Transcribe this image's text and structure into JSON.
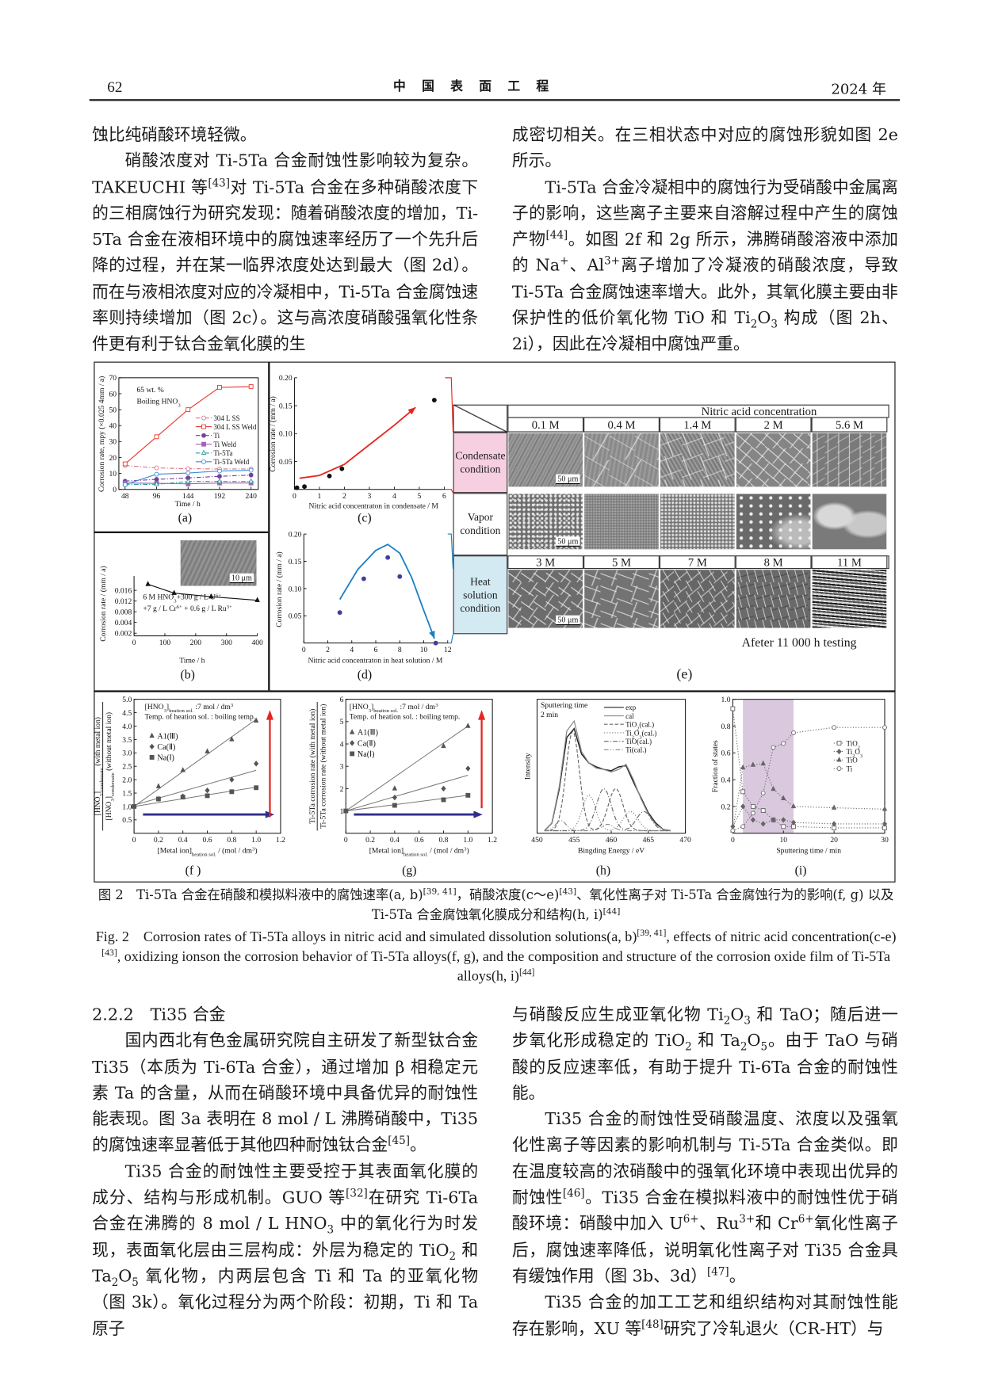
{
  "header": {
    "page_number": "62",
    "journal": "中　国　表　面　工　程",
    "year": "2024 年"
  },
  "left_top": [
    {
      "text": "蚀比纯硝酸环境轻微。",
      "indent": false
    },
    {
      "text": "硝酸浓度对 Ti-5Ta 合金耐蚀性影响较为复杂。TAKEUCHI 等^{[43]}对 Ti-5Ta 合金在多种硝酸浓度下的三相腐蚀行为研究发现：随着硝酸浓度的增加，Ti-5Ta 合金在液相环境中的腐蚀速率经历了一个先升后降的过程，并在某一临界浓度处达到最大（图 2d）。而在与液相浓度对应的冷凝相中，Ti-5Ta 合金腐蚀速率则持续增加（图 2c）。这与高浓度硝酸强氧化性条件更有利于钛合金氧化膜的生",
      "indent": true
    }
  ],
  "right_top": [
    {
      "text": "成密切相关。在三相状态中对应的腐蚀形貌如图 2e 所示。",
      "indent": false
    },
    {
      "text": "Ti-5Ta 合金冷凝相中的腐蚀行为受硝酸中金属离子的影响，这些离子主要来自溶解过程中产生的腐蚀产物^{[44]}。如图 2f 和 2g 所示，沸腾硝酸溶液中添加的 Na^{+}、Al^{3+}离子增加了冷凝液的硝酸浓度，导致 Ti-5Ta 合金腐蚀速率增大。此外，其氧化膜主要由非保护性的低价氧化物 TiO 和 Ti_{2}O_{3} 构成（图 2h、2i），因此在冷凝相中腐蚀严重。",
      "indent": true
    }
  ],
  "caption": {
    "cn": "图 2　Ti-5Ta 合金在硝酸和模拟料液中的腐蚀速率(a, b)^{[39, 41]}，硝酸浓度(c～e)^{[43]}、氧化性离子对 Ti-5Ta 合金腐蚀行为的影响(f, g) 以及 Ti-5Ta 合金腐蚀氧化膜成分和结构(h, i)^{[44]}",
    "en": "Fig. 2　Corrosion rates of Ti-5Ta alloys in nitric acid and simulated dissolution solutions(a, b)^{[39, 41]}, effects of nitric acid concentration(c-e)^{[43]}, oxidizing ionson the corrosion behavior of Ti-5Ta alloys(f, g), and the composition and structure of the corrosion oxide film of Ti-5Ta alloys(h, i)^{[44]}"
  },
  "section": {
    "heading": "2.2.2　Ti35 合金"
  },
  "left_bottom": [
    {
      "text": "国内西北有色金属研究院自主研发了新型钛合金 Ti35（本质为 Ti-6Ta 合金），通过增加 β 相稳定元素 Ta 的含量，从而在硝酸环境中具备优异的耐蚀性能表现。图 3a 表明在 8 mol / L 沸腾硝酸中，Ti35 的腐蚀速率显著低于其他四种耐蚀钛合金^{[45]}。",
      "indent": true
    },
    {
      "text": "Ti35 合金的耐蚀性主要受控于其表面氧化膜的成分、结构与形成机制。GUO 等^{[32]}在研究 Ti-6Ta 合金在沸腾的 8 mol / L HNO_{3} 中的氧化行为时发现，表面氧化层由三层构成：外层为稳定的 TiO_{2} 和 Ta_{2}O_{5} 氧化物，内两层包含 Ti 和 Ta 的亚氧化物（图 3k）。氧化过程分为两个阶段：初期，Ti 和 Ta 原子",
      "indent": true
    }
  ],
  "right_bottom": [
    {
      "text": "与硝酸反应生成亚氧化物 Ti_{2}O_{3} 和 TaO；随后进一步氧化形成稳定的 TiO_{2} 和 Ta_{2}O_{5}。由于 TaO 与硝酸的反应速率低，有助于提升 Ti-6Ta 合金的耐蚀性能。",
      "indent": false
    },
    {
      "text": "Ti35 合金的耐蚀性受硝酸温度、浓度以及强氧化性离子等因素的影响机制与 Ti-5Ta 合金类似。即在温度较高的浓硝酸中的强氧化环境中表现出优异的耐蚀性^{[46]}。Ti35 合金在模拟料液中的耐蚀性优于硝酸环境：硝酸中加入 U^{6+}、Ru^{3+}和 Cr^{6+}氧化性离子后，腐蚀速率降低，说明氧化性离子对 Ti35 合金具有缓蚀作用（图 3b、3d）^{[47]}。",
      "indent": true
    },
    {
      "text": "Ti35 合金的加工工艺和组织结构对其耐蚀性能存在影响，XU 等^{[48]}研究了冷轧退火（CR-HT）与",
      "indent": true
    }
  ],
  "panel_e": {
    "header": "Nitric acid concentration",
    "columns_top": [
      "0.1 M",
      "0.4 M",
      "1.4 M",
      "2 M",
      "5.6 M"
    ],
    "columns_heat": [
      "3 M",
      "5 M",
      "7 M",
      "8 M",
      "11 M"
    ],
    "rows": [
      "Condensate condition",
      "Vapor condition",
      "Heat solution condition"
    ],
    "row_colors": [
      "#f6cfe1",
      "#ffffff",
      "#d4eaf3"
    ],
    "scale_bar": "50 μm",
    "note": "Afeter 11 000 h testing",
    "label": "(e)"
  },
  "chart_data": [
    {
      "id": "a",
      "type": "line",
      "label": "(a)",
      "xlabel": "Time / h",
      "ylabel": "Corrosion rate, mpy (×0.025 4mm / a)",
      "annotations": [
        "65 wt. %",
        "Boiling HNO_{3}"
      ],
      "xticks": [
        "48",
        "96",
        "144",
        "192",
        "240"
      ],
      "yticks": [
        "0",
        "10",
        "20",
        "30",
        "40",
        "50",
        "60",
        "70"
      ],
      "xlim": [
        38.5,
        251
      ],
      "ylim": [
        0,
        70
      ],
      "legend": "upper-right",
      "x": [
        48,
        96,
        144,
        192,
        240
      ],
      "series": [
        {
          "name": "304 L SS",
          "values": [
            15,
            13.5,
            13,
            12.8,
            12.8
          ],
          "color": "#d9758a",
          "dash": "dashdot",
          "marker": "circle-open"
        },
        {
          "name": "304 L SS Weld",
          "values": [
            16,
            33,
            50,
            64,
            64.5
          ],
          "color": "#e8392f",
          "dash": "solid",
          "marker": "square-open"
        },
        {
          "name": "Ti",
          "values": [
            5.2,
            6.3,
            7.2,
            8.2,
            9
          ],
          "color": "#7a3f9a",
          "dash": "dashdot",
          "marker": "circle"
        },
        {
          "name": "Ti Weld",
          "values": [
            4,
            3.8,
            3.5,
            4,
            4
          ],
          "color": "#a064b8",
          "dash": "solid",
          "marker": "square"
        },
        {
          "name": "Ti-5Ta",
          "values": [
            3,
            3.2,
            5,
            5,
            5
          ],
          "color": "#2aa0a0",
          "dash": "dashdot",
          "marker": "triangle-open"
        },
        {
          "name": "Ti-5Ta Weld",
          "values": [
            3,
            9.5,
            10.3,
            11.5,
            12
          ],
          "color": "#3a8fd6",
          "dash": "solid",
          "marker": "circle-open"
        }
      ]
    },
    {
      "id": "b",
      "type": "line",
      "label": "(b)",
      "xlabel": "Time / h",
      "ylabel": "Corrosion rate / (mm / a)",
      "annotations": [
        "6 M HNO_{3}+300 g / L U^{6+}",
        "+7 g / L Cr^{6+} + 0.6 g / L Ru^{3+}"
      ],
      "inset_scale": "10 μm",
      "xticks": [
        "0",
        "100",
        "200",
        "300",
        "400"
      ],
      "yticks": [
        "0.002",
        "0.004",
        "0.008",
        "0.012",
        "0.016"
      ],
      "xlim": [
        0,
        400
      ],
      "ylim": [
        0,
        0.0168
      ],
      "series": [
        {
          "points": [
            [
              45,
              0.0145
            ],
            [
              130,
              0.012
            ],
            [
              250,
              0.011
            ],
            [
              400,
              0.01
            ]
          ],
          "color": "#111111",
          "dash": "solid",
          "marker": "triangle"
        }
      ]
    },
    {
      "id": "c",
      "type": "scatter",
      "label": "(c)",
      "xlabel": "Nitric acid concentraton in condensate / M",
      "ylabel": "Corrosion rate / (mm / a)",
      "xticks": [
        "0",
        "1",
        "2",
        "3",
        "4",
        "5",
        "6"
      ],
      "yticks": [
        "0.05",
        "0.10",
        "0.15",
        "0.20"
      ],
      "xlim": [
        0,
        6.03
      ],
      "ylim": [
        0,
        0.2
      ],
      "series": [
        {
          "points": [
            [
              0.1,
              0.003
            ],
            [
              0.4,
              0.005
            ],
            [
              1.4,
              0.024
            ],
            [
              1.9,
              0.037
            ],
            [
              5.6,
              0.16
            ]
          ],
          "color": "#111111",
          "line": false,
          "marker": "circle"
        }
      ],
      "trend": {
        "points": [
          [
            0.2,
            0.02
          ],
          [
            1,
            0.025
          ],
          [
            2,
            0.045
          ],
          [
            3,
            0.08
          ],
          [
            4,
            0.115
          ],
          [
            4.85,
            0.147
          ]
        ],
        "color": "#e5251f",
        "arrow": true
      }
    },
    {
      "id": "d",
      "type": "scatter",
      "label": "(d)",
      "xlabel": "Nitric acid concentraton in heat solution / M",
      "ylabel": "Corrosion rate / (mm / a)",
      "xticks": [
        "0",
        "2",
        "4",
        "6",
        "8",
        "10",
        "12"
      ],
      "yticks": [
        "0.05",
        "0.10",
        "0.15",
        "0.20"
      ],
      "xlim": [
        0,
        12
      ],
      "ylim": [
        0,
        0.2
      ],
      "series": [
        {
          "points": [
            [
              3,
              0.056
            ],
            [
              5,
              0.118
            ],
            [
              7,
              0.157
            ],
            [
              8,
              0.122
            ],
            [
              11,
              0.0
            ]
          ],
          "color": "#3f3f9a",
          "line": false,
          "marker": "circle"
        }
      ],
      "trend": {
        "points": [
          [
            3,
            0.08
          ],
          [
            4.5,
            0.135
          ],
          [
            6,
            0.17
          ],
          [
            7,
            0.181
          ],
          [
            8,
            0.165
          ],
          [
            9,
            0.12
          ],
          [
            10,
            0.06
          ],
          [
            10.9,
            0.008
          ]
        ],
        "color": "#1a7fc0",
        "arrow": true
      }
    },
    {
      "id": "f",
      "type": "line",
      "label": "(f )",
      "xlabel": "[Metal ion]_{heation sol.} / (mol / dm^{3})",
      "ylabel": [
        "[HNO_{3}]_{condensate} (with metal ion)",
        "[HNO_{3}]_{condensate} (without metal ion)"
      ],
      "annotations": [
        "[HNO_{3}]_{heation sol.} :7 mol / dm^{3}",
        "Temp. of heation sol. : boiling temp."
      ],
      "xticks": [
        "0",
        "0.2",
        "0.4",
        "0.6",
        "0.8",
        "1.0",
        "1.2"
      ],
      "yticks": [
        "0.5",
        "1.0",
        "1.5",
        "2.0",
        "2.5",
        "3.0",
        "3.5",
        "4.0",
        "4.5",
        "5.0"
      ],
      "xlim": [
        0,
        1.2
      ],
      "ylim": [
        0,
        5
      ],
      "x": [
        0,
        0.2,
        0.4,
        0.6,
        0.8,
        1.0
      ],
      "series": [
        {
          "name": "A1(Ⅲ)",
          "values": [
            1,
            1.75,
            2.35,
            3.05,
            3.5,
            4.2
          ],
          "color": "#555555",
          "marker": "triangle",
          "fit": [
            1.0,
            4.25
          ]
        },
        {
          "name": "Ca(Ⅱ)",
          "values": [
            1,
            1.28,
            1.38,
            1.6,
            2.0,
            2.6
          ],
          "color": "#555555",
          "marker": "diamond",
          "fit": [
            1.05,
            2.35
          ]
        },
        {
          "name": "Na(Ⅰ)",
          "values": [
            1,
            1.28,
            1.35,
            1.4,
            1.55,
            1.7
          ],
          "color": "#555555",
          "marker": "square",
          "fit": [
            1.0,
            1.72
          ]
        }
      ]
    },
    {
      "id": "g",
      "type": "line",
      "label": "(g)",
      "xlabel": "[Metal ion]_{heation sol.} / (mol / dm^{3})",
      "ylabel": [
        "Ti-5Ta corrosion rate (with metal ion)",
        "Ti-5Ta corrosion rate (without metal ion)"
      ],
      "annotations": [
        "[HNO_{3}]_{heation sol.} :7 mol / dm^{3}",
        "Temp. of heation sol. : boiling temp."
      ],
      "xticks": [
        "0",
        "0.2",
        "0.4",
        "0.6",
        "0.8",
        "1.0",
        "1.2"
      ],
      "yticks": [
        "1",
        "2",
        "3",
        "4",
        "5",
        "6"
      ],
      "xlim": [
        0,
        1.2
      ],
      "ylim": [
        0,
        6
      ],
      "x": [
        0,
        0.4,
        0.8,
        1.0
      ],
      "series": [
        {
          "name": "A1(Ⅲ)",
          "values": [
            1,
            2.0,
            3.9,
            4.8
          ],
          "color": "#555555",
          "marker": "triangle",
          "fit": [
            1.0,
            4.8
          ]
        },
        {
          "name": "Ca(Ⅱ)",
          "values": [
            1,
            1.6,
            2.0,
            2.9
          ],
          "color": "#555555",
          "marker": "diamond",
          "fit": [
            1.0,
            2.6
          ]
        },
        {
          "name": "Na(Ⅰ)",
          "values": [
            1,
            1.25,
            1.5,
            1.7
          ],
          "color": "#555555",
          "marker": "square",
          "fit": [
            1.0,
            1.7
          ]
        }
      ]
    },
    {
      "id": "h",
      "type": "line",
      "label": "(h)",
      "xlabel": "Bingding Energy / eV",
      "ylabel": "Intensity",
      "annotations": [
        "Sputtering time",
        "2 min"
      ],
      "xticks": [
        "450",
        "455",
        "460",
        "465",
        "470"
      ],
      "yticks": [],
      "xlim": [
        450,
        470
      ],
      "ylim": [
        0,
        1.05
      ],
      "x": [
        451,
        452,
        453,
        454,
        455,
        456,
        457,
        458,
        459,
        460,
        461,
        462,
        463,
        464,
        465,
        466,
        467,
        468
      ],
      "series": [
        {
          "name": "exp",
          "values": [
            0.02,
            0.08,
            0.35,
            0.75,
            0.82,
            0.62,
            0.55,
            0.52,
            0.5,
            0.49,
            0.52,
            0.53,
            0.4,
            0.28,
            0.16,
            0.08,
            0.03,
            0.02
          ],
          "color": "#222222",
          "dash": "solid",
          "width": 1.3
        },
        {
          "name": "cal",
          "values": [
            0.02,
            0.08,
            0.37,
            0.8,
            0.88,
            0.64,
            0.55,
            0.51,
            0.5,
            0.48,
            0.5,
            0.54,
            0.42,
            0.27,
            0.15,
            0.07,
            0.03,
            0.02
          ],
          "color": "#888888",
          "dash": "solid",
          "width": 1.1
        },
        {
          "name": "TiO_{2}(cal.)",
          "peaks": [
            [
              454.8,
              0.78,
              0.9
            ],
            [
              460.6,
              0.33,
              1.0
            ]
          ],
          "color": "#666666",
          "dash": "dashed"
        },
        {
          "name": "Ti_{2}O_{3}(cal.)",
          "peaks": [
            [
              457.0,
              0.28,
              0.9
            ],
            [
              462.6,
              0.15,
              1.0
            ]
          ],
          "color": "#777777",
          "dash": "dotted"
        },
        {
          "name": "TiO(cal.)",
          "peaks": [
            [
              459.0,
              0.33,
              1.0
            ],
            [
              464.4,
              0.15,
              1.0
            ]
          ],
          "color": "#666666",
          "dash": "dashdot"
        },
        {
          "name": "Ti(cal.)",
          "peaks": [
            [
              453.2,
              0.08,
              0.7
            ],
            [
              459.5,
              0.05,
              0.8
            ]
          ],
          "color": "#888888",
          "dash": "dashdotdot"
        }
      ]
    },
    {
      "id": "i",
      "type": "line",
      "label": "(i)",
      "xlabel": "Sputtering time / min",
      "ylabel": "Fraction of states",
      "xticks": [
        "0",
        "10",
        "20",
        "30"
      ],
      "yticks": [
        "0.2",
        "0.4",
        "0.6",
        "0.8",
        "1.0"
      ],
      "xlim": [
        0,
        30
      ],
      "ylim": [
        0,
        1
      ],
      "shaded_range": [
        2,
        12
      ],
      "shade_color": "#d4bfd8",
      "x": [
        0,
        2,
        4,
        6,
        8,
        10,
        12,
        20,
        30
      ],
      "series": [
        {
          "name": "TiO_{2}",
          "values": [
            0.93,
            0.31,
            0.2,
            0.17,
            0.1,
            0.05,
            0.05,
            0.04,
            0.04
          ],
          "color": "#666666",
          "dash": "dotted",
          "marker": "square-open"
        },
        {
          "name": "Ti_{2}O_{3}",
          "values": [
            0.05,
            0.2,
            0.1,
            0.07,
            0.1,
            0.1,
            0.08,
            0.07,
            0.07
          ],
          "color": "#666666",
          "dash": "dotted",
          "marker": "diamond"
        },
        {
          "name": "TiO",
          "values": [
            0.02,
            0.49,
            0.51,
            0.52,
            0.33,
            0.26,
            0.2,
            0.19,
            0.18
          ],
          "color": "#666666",
          "dash": "dotted",
          "marker": "triangle"
        },
        {
          "name": "Ti",
          "values": [
            0.02,
            0.05,
            0.15,
            0.3,
            0.64,
            0.67,
            0.75,
            0.79,
            0.79
          ],
          "color": "#666666",
          "dash": "dotted",
          "marker": "circle-open"
        }
      ]
    }
  ]
}
